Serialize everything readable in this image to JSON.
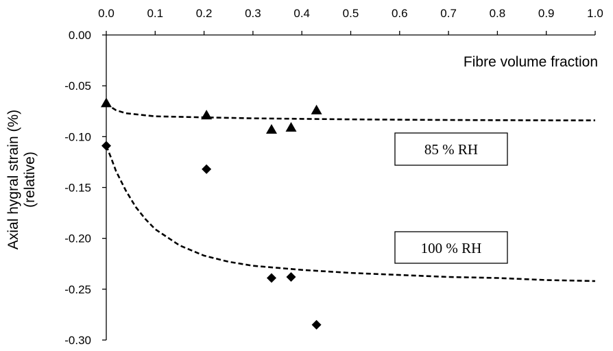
{
  "chart_data": {
    "type": "scatter",
    "title": "",
    "xlabel": "Fibre volume fraction",
    "ylabel_lines": [
      "Axial hygral strain (%)",
      "(relative)"
    ],
    "xlim": [
      0.0,
      1.0
    ],
    "ylim": [
      -0.3,
      0.0
    ],
    "x_ticks": [
      "0.0",
      "0.1",
      "0.2",
      "0.3",
      "0.4",
      "0.5",
      "0.6",
      "0.7",
      "0.8",
      "0.9",
      "1.0"
    ],
    "y_ticks": [
      "0.00",
      "-0.05",
      "-0.10",
      "-0.15",
      "-0.20",
      "-0.25",
      "-0.30"
    ],
    "x_tick_values": [
      0.0,
      0.1,
      0.2,
      0.3,
      0.4,
      0.5,
      0.6,
      0.7,
      0.8,
      0.9,
      1.0
    ],
    "y_tick_values": [
      0.0,
      -0.05,
      -0.1,
      -0.15,
      -0.2,
      -0.25,
      -0.3
    ],
    "grid": false,
    "x_axis_position": "top",
    "series": [
      {
        "marker": "triangle",
        "label": "85 % RH",
        "x": [
          0.0,
          0.205,
          0.338,
          0.378,
          0.43
        ],
        "y": [
          -0.067,
          -0.079,
          -0.093,
          -0.091,
          -0.074
        ]
      },
      {
        "marker": "diamond",
        "label": "100 % RH",
        "x": [
          0.0,
          0.205,
          0.338,
          0.378,
          0.43
        ],
        "y": [
          -0.109,
          -0.132,
          -0.239,
          -0.238,
          -0.285
        ]
      }
    ],
    "fit_curves": [
      {
        "style": "dashed",
        "x": [
          0.0,
          0.01,
          0.02,
          0.04,
          0.06,
          0.1,
          0.15,
          0.2,
          0.3,
          0.4,
          0.5,
          0.6,
          0.7,
          0.8,
          0.9,
          1.0
        ],
        "y": [
          -0.067,
          -0.071,
          -0.074,
          -0.077,
          -0.078,
          -0.08,
          -0.0805,
          -0.081,
          -0.082,
          -0.0825,
          -0.083,
          -0.0833,
          -0.0836,
          -0.0838,
          -0.0839,
          -0.084
        ]
      },
      {
        "style": "dashed",
        "x": [
          0.0,
          0.01,
          0.02,
          0.04,
          0.06,
          0.08,
          0.1,
          0.15,
          0.2,
          0.25,
          0.3,
          0.35,
          0.4,
          0.5,
          0.6,
          0.7,
          0.8,
          0.9,
          1.0
        ],
        "y": [
          -0.109,
          -0.121,
          -0.134,
          -0.153,
          -0.169,
          -0.181,
          -0.191,
          -0.207,
          -0.217,
          -0.223,
          -0.227,
          -0.229,
          -0.231,
          -0.234,
          -0.236,
          -0.238,
          -0.239,
          -0.241,
          -0.242
        ]
      }
    ]
  }
}
